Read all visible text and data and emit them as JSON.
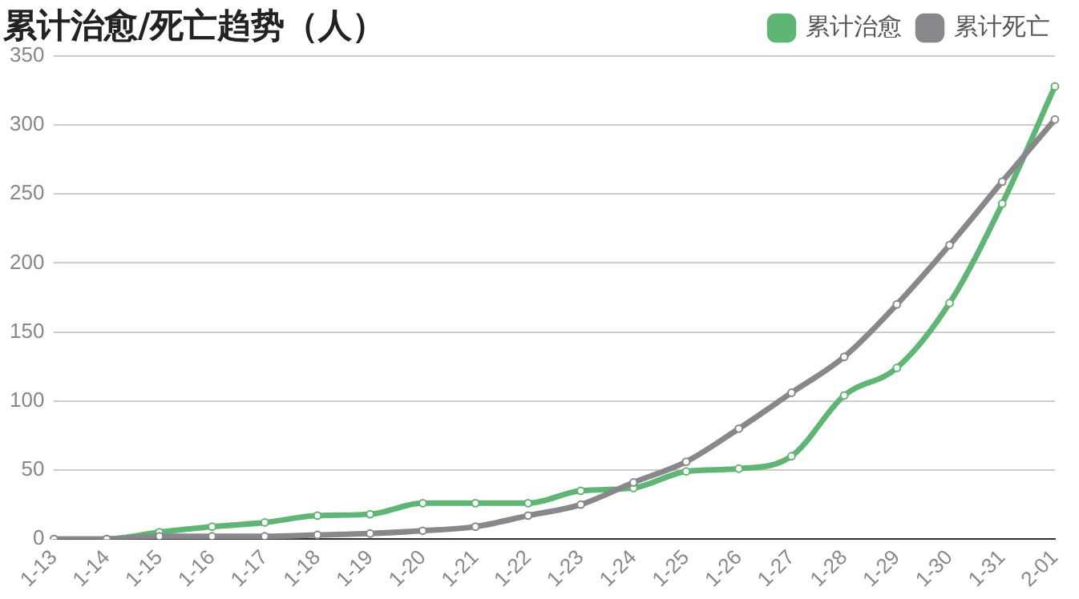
{
  "chart_data": {
    "type": "line",
    "title": "累计治愈/死亡趋势（人）",
    "categories": [
      "1-13",
      "1-14",
      "1-15",
      "1-16",
      "1-17",
      "1-18",
      "1-19",
      "1-20",
      "1-21",
      "1-22",
      "1-23",
      "1-24",
      "1-25",
      "1-26",
      "1-27",
      "1-28",
      "1-29",
      "1-30",
      "1-31",
      "2-01"
    ],
    "series": [
      {
        "name": "累计治愈",
        "color": "#5fb574",
        "values": [
          0,
          0,
          5,
          9,
          12,
          17,
          18,
          26,
          26,
          26,
          35,
          37,
          49,
          51,
          60,
          104,
          124,
          171,
          243,
          328
        ]
      },
      {
        "name": "累计死亡",
        "color": "#88888c",
        "values": [
          0,
          0,
          2,
          2,
          2,
          3,
          4,
          6,
          9,
          17,
          25,
          41,
          56,
          80,
          106,
          132,
          170,
          213,
          259,
          304
        ]
      }
    ],
    "ylim": [
      0,
      350
    ],
    "yticks": [
      0,
      50,
      100,
      150,
      200,
      250,
      300,
      350
    ],
    "grid": "y",
    "legend": "top right",
    "marker": "circle",
    "line_style": "solid"
  }
}
